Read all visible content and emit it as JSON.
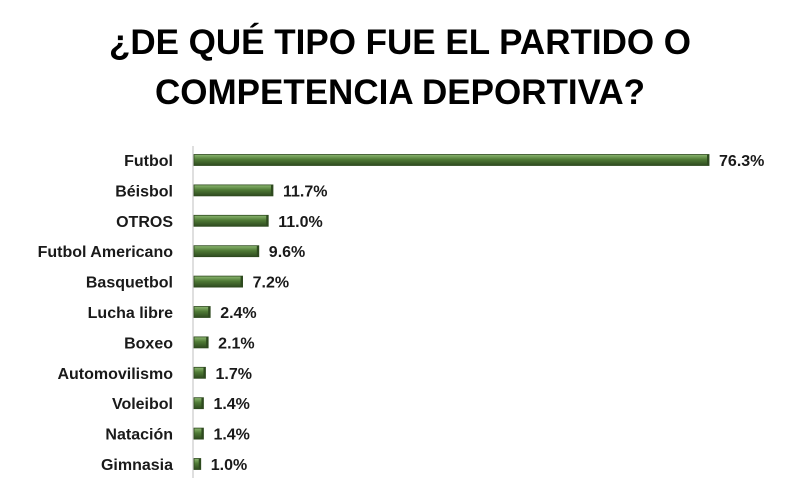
{
  "chart_data": {
    "type": "bar",
    "orientation": "horizontal",
    "title_lines": [
      "¿DE QUÉ TIPO FUE EL PARTIDO O",
      "COMPETENCIA DEPORTIVA?"
    ],
    "categories": [
      "Futbol",
      "Béisbol",
      "OTROS",
      "Futbol Americano",
      "Basquetbol",
      "Lucha libre",
      "Boxeo",
      "Automovilismo",
      "Voleibol",
      "Natación",
      "Gimnasia"
    ],
    "values": [
      76.3,
      11.7,
      11.0,
      9.6,
      7.2,
      2.4,
      2.1,
      1.7,
      1.4,
      1.4,
      1.0
    ],
    "value_labels": [
      "76.3%",
      "11.7%",
      "11.0%",
      "9.6%",
      "7.2%",
      "2.4%",
      "2.1%",
      "1.7%",
      "1.4%",
      "1.4%",
      "1.0%"
    ],
    "bar_color": "#4f7a35",
    "bar_color_dark": "#2e4a1f",
    "bar_color_light": "#8db872",
    "grid": false,
    "legend": "none"
  }
}
